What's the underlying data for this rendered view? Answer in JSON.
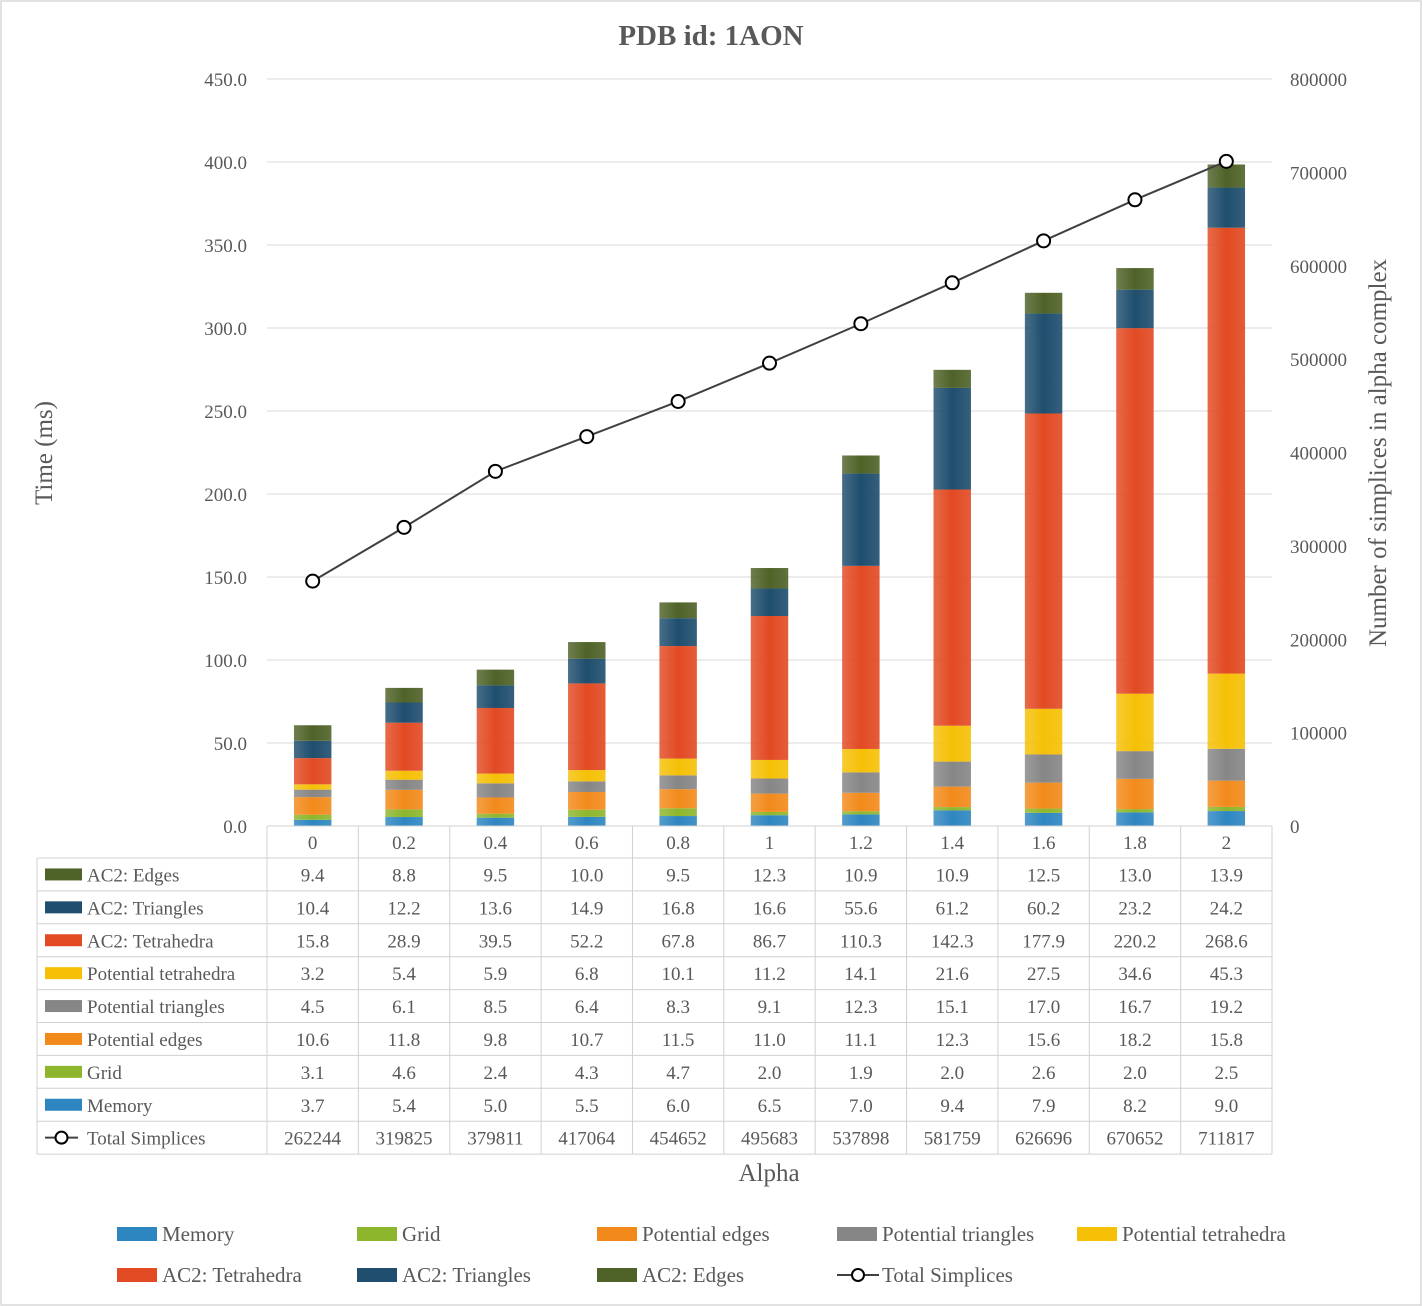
{
  "chart_data": {
    "type": "bar",
    "stacked": true,
    "title": "PDB id: 1AON",
    "xlabel": "Alpha",
    "ylabel": "Time (ms)",
    "y2label": "Number of  simplices in alpha complex",
    "ylim": [
      0,
      450
    ],
    "y2lim": [
      0,
      800000
    ],
    "yticks": [
      "0.0",
      "50.0",
      "100.0",
      "150.0",
      "200.0",
      "250.0",
      "300.0",
      "350.0",
      "400.0",
      "450.0"
    ],
    "y2ticks": [
      "0",
      "100000",
      "200000",
      "300000",
      "400000",
      "500000",
      "600000",
      "700000",
      "800000"
    ],
    "grid": true,
    "legend_position": "bottom",
    "categories": [
      "0",
      "0.2",
      "0.4",
      "0.6",
      "0.8",
      "1",
      "1.2",
      "1.4",
      "1.6",
      "1.8",
      "2"
    ],
    "series": [
      {
        "name": "Memory",
        "color": "#2E86C1",
        "values": [
          3.7,
          5.4,
          5.0,
          5.5,
          6.0,
          6.5,
          7.0,
          9.4,
          7.9,
          8.2,
          9.0
        ]
      },
      {
        "name": "Grid",
        "color": "#8DB62C",
        "values": [
          3.1,
          4.6,
          2.4,
          4.3,
          4.7,
          2.0,
          1.9,
          2.0,
          2.6,
          2.0,
          2.5
        ]
      },
      {
        "name": "Potential edges",
        "color": "#F28A1B",
        "values": [
          10.6,
          11.8,
          9.8,
          10.7,
          11.5,
          11.0,
          11.1,
          12.3,
          15.6,
          18.2,
          15.8
        ]
      },
      {
        "name": "Potential triangles",
        "color": "#868686",
        "values": [
          4.5,
          6.1,
          8.5,
          6.4,
          8.3,
          9.1,
          12.3,
          15.1,
          17.0,
          16.7,
          19.2
        ]
      },
      {
        "name": "Potential tetrahedra",
        "color": "#F5C006",
        "values": [
          3.2,
          5.4,
          5.9,
          6.8,
          10.1,
          11.2,
          14.1,
          21.6,
          27.5,
          34.6,
          45.3
        ]
      },
      {
        "name": "AC2: Tetrahedra",
        "color": "#E24A23",
        "values": [
          15.8,
          28.9,
          39.5,
          52.2,
          67.8,
          86.7,
          110.3,
          142.3,
          177.9,
          220.2,
          268.6
        ]
      },
      {
        "name": "AC2: Triangles",
        "color": "#1F4E6E",
        "values": [
          10.4,
          12.2,
          13.6,
          14.9,
          16.8,
          16.6,
          55.6,
          61.2,
          60.2,
          23.2,
          24.2
        ]
      },
      {
        "name": "AC2: Edges",
        "color": "#4F6228",
        "values": [
          9.4,
          8.8,
          9.5,
          10.0,
          9.5,
          12.3,
          10.9,
          10.9,
          12.5,
          13.0,
          13.9
        ]
      }
    ],
    "line_series": {
      "name": "Total Simplices",
      "axis": "secondary",
      "color": "#404040",
      "values": [
        262244,
        319825,
        379811,
        417064,
        454652,
        495683,
        537898,
        581759,
        626696,
        670652,
        711817
      ]
    },
    "table": {
      "row_order": [
        "AC2: Edges",
        "AC2: Triangles",
        "AC2: Tetrahedra",
        "Potential tetrahedra",
        "Potential triangles",
        "Potential edges",
        "Grid",
        "Memory",
        "Total Simplices"
      ],
      "rows": [
        [
          "9.4",
          "8.8",
          "9.5",
          "10.0",
          "9.5",
          "12.3",
          "10.9",
          "10.9",
          "12.5",
          "13.0",
          "13.9"
        ],
        [
          "10.4",
          "12.2",
          "13.6",
          "14.9",
          "16.8",
          "16.6",
          "55.6",
          "61.2",
          "60.2",
          "23.2",
          "24.2"
        ],
        [
          "15.8",
          "28.9",
          "39.5",
          "52.2",
          "67.8",
          "86.7",
          "110.3",
          "142.3",
          "177.9",
          "220.2",
          "268.6"
        ],
        [
          "3.2",
          "5.4",
          "5.9",
          "6.8",
          "10.1",
          "11.2",
          "14.1",
          "21.6",
          "27.5",
          "34.6",
          "45.3"
        ],
        [
          "4.5",
          "6.1",
          "8.5",
          "6.4",
          "8.3",
          "9.1",
          "12.3",
          "15.1",
          "17.0",
          "16.7",
          "19.2"
        ],
        [
          "10.6",
          "11.8",
          "9.8",
          "10.7",
          "11.5",
          "11.0",
          "11.1",
          "12.3",
          "15.6",
          "18.2",
          "15.8"
        ],
        [
          "3.1",
          "4.6",
          "2.4",
          "4.3",
          "4.7",
          "2.0",
          "1.9",
          "2.0",
          "2.6",
          "2.0",
          "2.5"
        ],
        [
          "3.7",
          "5.4",
          "5.0",
          "5.5",
          "6.0",
          "6.5",
          "7.0",
          "9.4",
          "7.9",
          "8.2",
          "9.0"
        ],
        [
          "262244",
          "319825",
          "379811",
          "417064",
          "454652",
          "495683",
          "537898",
          "581759",
          "626696",
          "670652",
          "711817"
        ]
      ]
    }
  }
}
